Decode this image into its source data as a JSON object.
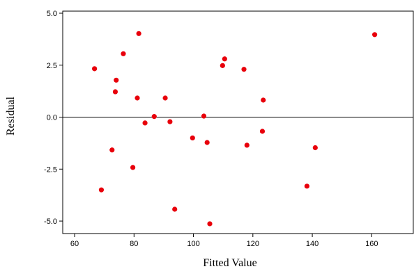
{
  "chart_data": {
    "type": "scatter",
    "title": "",
    "xlabel": "Fitted Value",
    "ylabel": "Residual",
    "xlim": [
      56,
      174
    ],
    "ylim": [
      -5.6,
      5.1
    ],
    "x_ticks": [
      60,
      80,
      100,
      120,
      140,
      160
    ],
    "x_tick_labels": [
      "60",
      "80",
      "100",
      "120",
      "140",
      "160"
    ],
    "y_ticks": [
      5.0,
      2.5,
      0.0,
      -2.5,
      -5.0
    ],
    "y_tick_labels": [
      "5.0",
      "2.5",
      "0.0",
      "-2.5",
      "-5.0"
    ],
    "reference_line_y": 0,
    "grid": false,
    "point_color": "#e8000b",
    "points": [
      {
        "x": 66.7,
        "y": 2.33
      },
      {
        "x": 69.0,
        "y": -3.5
      },
      {
        "x": 72.6,
        "y": -1.58
      },
      {
        "x": 73.7,
        "y": 1.22
      },
      {
        "x": 74.0,
        "y": 1.78
      },
      {
        "x": 76.4,
        "y": 3.05
      },
      {
        "x": 79.6,
        "y": -2.42
      },
      {
        "x": 81.1,
        "y": 0.92
      },
      {
        "x": 81.6,
        "y": 4.02
      },
      {
        "x": 83.7,
        "y": -0.28
      },
      {
        "x": 86.8,
        "y": 0.03
      },
      {
        "x": 90.5,
        "y": 0.92
      },
      {
        "x": 92.1,
        "y": -0.22
      },
      {
        "x": 93.7,
        "y": -4.43
      },
      {
        "x": 99.7,
        "y": -1.0
      },
      {
        "x": 103.5,
        "y": 0.05
      },
      {
        "x": 104.6,
        "y": -1.22
      },
      {
        "x": 105.5,
        "y": -5.13
      },
      {
        "x": 109.8,
        "y": 2.48
      },
      {
        "x": 110.5,
        "y": 2.8
      },
      {
        "x": 117.0,
        "y": 2.3
      },
      {
        "x": 118.0,
        "y": -1.35
      },
      {
        "x": 123.2,
        "y": -0.68
      },
      {
        "x": 123.5,
        "y": 0.82
      },
      {
        "x": 138.2,
        "y": -3.32
      },
      {
        "x": 141.0,
        "y": -1.47
      },
      {
        "x": 161.0,
        "y": 3.97
      }
    ]
  }
}
